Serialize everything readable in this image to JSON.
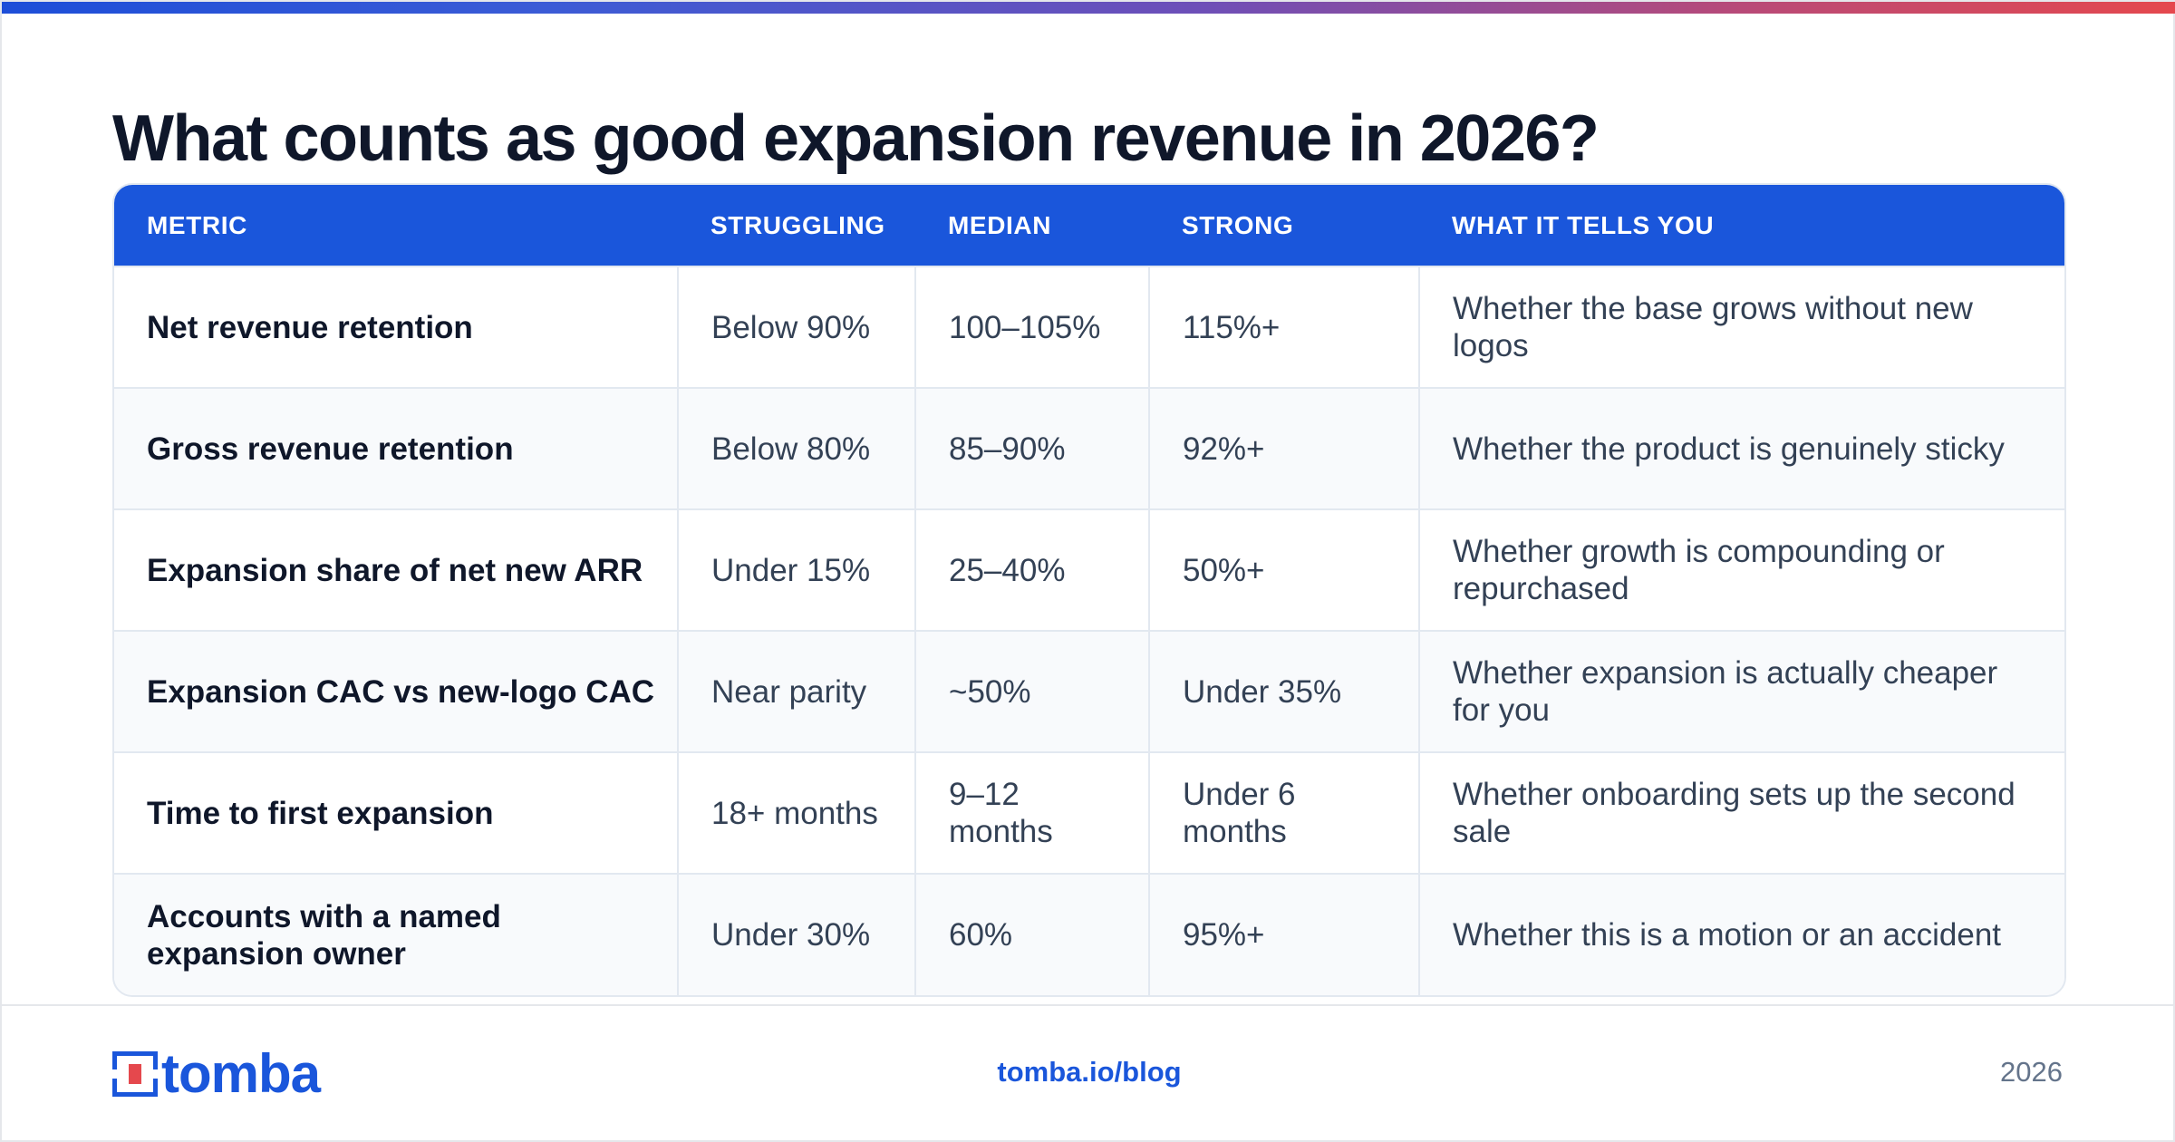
{
  "title": "What counts as good expansion revenue in 2026?",
  "colors": {
    "accent": "#1a56db",
    "header_bg": "#1a56db",
    "alt_row": "#f8fafc"
  },
  "table": {
    "headers": [
      "METRIC",
      "STRUGGLING",
      "MEDIAN",
      "STRONG",
      "WHAT IT TELLS YOU"
    ],
    "rows": [
      [
        "Net revenue retention",
        "Below 90%",
        "100–105%",
        "115%+",
        "Whether the base grows without new logos"
      ],
      [
        "Gross revenue retention",
        "Below 80%",
        "85–90%",
        "92%+",
        "Whether the product is genuinely sticky"
      ],
      [
        "Expansion share of net new ARR",
        "Under 15%",
        "25–40%",
        "50%+",
        "Whether growth is compounding or repurchased"
      ],
      [
        "Expansion CAC vs new-logo CAC",
        "Near parity",
        "~50%",
        "Under 35%",
        "Whether expansion is actually cheaper for you"
      ],
      [
        "Time to first expansion",
        "18+ months",
        "9–12 months",
        "Under 6 months",
        "Whether onboarding sets up the second sale"
      ],
      [
        "Accounts with a named expansion owner",
        "Under 30%",
        "60%",
        "95%+",
        "Whether this is a motion or an accident"
      ]
    ]
  },
  "footer": {
    "logo_text": "tomba",
    "logo_icon": "tomba-logo-icon",
    "url": "tomba.io/blog",
    "year": "2026"
  }
}
